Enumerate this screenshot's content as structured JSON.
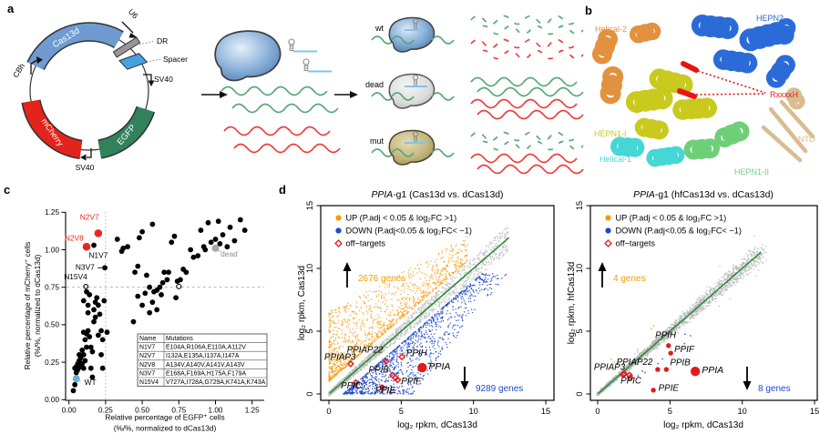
{
  "figure": {
    "panel_labels": {
      "a": "a",
      "b": "b",
      "c": "c",
      "d": "d"
    }
  },
  "panel_a": {
    "plasmid": {
      "cbh": "CBh",
      "cas13d": "Cas13d",
      "u6": "U6",
      "dr": "DR",
      "spacer": "Spacer",
      "sv40_right": "SV40",
      "sv40_bottom": "SV40",
      "mcherry": "mCherry",
      "egfp": "EGFP"
    },
    "variants": {
      "wt": "wt",
      "dead": "dead",
      "mut": "mut"
    },
    "colors": {
      "cas13d_arc": "#6f9bd0",
      "mcherry": "#e3231c",
      "egfp": "#31815d",
      "spacer": "#45a1df",
      "dr": "#969696",
      "target_rna": "#59a877",
      "nontarget_rna": "#ee3f3b",
      "guide": "#7fc4ed"
    }
  },
  "panel_b": {
    "labels": [
      {
        "text": "Helical-2",
        "color": "#e2913f"
      },
      {
        "text": "HEPN2",
        "color": "#2b6bd8"
      },
      {
        "text": "RxxxxH",
        "color": "#e81313"
      },
      {
        "text": "HEPN1-I",
        "color": "#c9c91e"
      },
      {
        "text": "Helical-1",
        "color": "#45d6d6"
      },
      {
        "text": "HEPN1-II",
        "color": "#6fcf79"
      },
      {
        "text": "NTD",
        "color": "#d8bd92"
      }
    ]
  },
  "chart_data": [
    {
      "type": "scatter",
      "panel": "c",
      "xlabel1": "Relative percentage of EGFP⁺ cells",
      "xlabel2": "(%/%, normalized to dCas13d)",
      "ylabel1": "Relative percentage of mCherry⁺ cells",
      "ylabel2": "(%/%, normalized to dCas13d)",
      "xlim": [
        0,
        1.3
      ],
      "ylim": [
        0,
        1.3
      ],
      "xticks": [
        0,
        0.25,
        0.5,
        0.75,
        1,
        1.25
      ],
      "xtick_labels": [
        "0.00",
        "0.25",
        "0.50",
        "0.75",
        "1.00",
        "1.25"
      ],
      "yticks": [
        0,
        0.25,
        0.5,
        0.75,
        1,
        1.25
      ],
      "ytick_labels": [
        "0.00",
        "0.25",
        "0.50",
        "0.75",
        "1.00",
        "1.25"
      ],
      "ref_lines": {
        "h": 0.75,
        "v": 0.25
      },
      "points": [
        [
          0.03,
          0.06
        ],
        [
          0.04,
          0.1
        ],
        [
          0.04,
          0.21
        ],
        [
          0.05,
          0.22
        ],
        [
          0.05,
          0.18
        ],
        [
          0.06,
          0.2
        ],
        [
          0.06,
          0.24
        ],
        [
          0.07,
          0.22
        ],
        [
          0.07,
          0.26
        ],
        [
          0.07,
          0.3
        ],
        [
          0.08,
          0.22
        ],
        [
          0.08,
          0.28
        ],
        [
          0.09,
          0.24
        ],
        [
          0.09,
          0.33
        ],
        [
          0.1,
          0.21
        ],
        [
          0.1,
          0.3
        ],
        [
          0.1,
          0.45
        ],
        [
          0.1,
          0.66
        ],
        [
          0.11,
          0.4
        ],
        [
          0.11,
          0.26
        ],
        [
          0.12,
          0.35
        ],
        [
          0.12,
          0.44
        ],
        [
          0.12,
          0.72
        ],
        [
          0.13,
          0.46
        ],
        [
          0.13,
          0.58
        ],
        [
          0.13,
          0.63
        ],
        [
          0.14,
          0.42
        ],
        [
          0.14,
          0.7
        ],
        [
          0.15,
          0.21
        ],
        [
          0.15,
          0.35
        ],
        [
          0.16,
          0.15
        ],
        [
          0.16,
          0.32
        ],
        [
          0.17,
          0.52
        ],
        [
          0.17,
          0.6
        ],
        [
          0.18,
          0.55
        ],
        [
          0.18,
          0.65
        ],
        [
          0.19,
          0.68
        ],
        [
          0.2,
          0.63
        ],
        [
          0.2,
          0.43
        ],
        [
          0.21,
          0.57
        ],
        [
          0.22,
          0.3
        ],
        [
          0.22,
          0.46
        ],
        [
          0.23,
          0.21
        ],
        [
          0.23,
          0.4
        ],
        [
          0.24,
          0.66
        ],
        [
          0.26,
          0.45
        ],
        [
          0.33,
          1.07
        ],
        [
          0.36,
          0.99
        ],
        [
          0.37,
          1.01
        ],
        [
          0.4,
          1.02
        ],
        [
          0.44,
          0.52
        ],
        [
          0.45,
          0.85
        ],
        [
          0.47,
          0.69
        ],
        [
          0.47,
          0.89
        ],
        [
          0.48,
          1.08
        ],
        [
          0.5,
          0.63
        ],
        [
          0.5,
          1.12
        ],
        [
          0.52,
          0.71
        ],
        [
          0.53,
          0.83
        ],
        [
          0.55,
          0.58
        ],
        [
          0.55,
          0.75
        ],
        [
          0.57,
          0.65
        ],
        [
          0.57,
          1.17
        ],
        [
          0.58,
          0.72
        ],
        [
          0.6,
          0.6
        ],
        [
          0.6,
          0.73
        ],
        [
          0.62,
          0.75
        ],
        [
          0.63,
          0.7
        ],
        [
          0.64,
          0.78
        ],
        [
          0.65,
          0.85
        ],
        [
          0.67,
          0.8
        ],
        [
          0.68,
          0.85
        ],
        [
          0.7,
          1.05
        ],
        [
          0.72,
          1.09
        ],
        [
          0.73,
          0.68
        ],
        [
          0.74,
          0.79
        ],
        [
          0.76,
          0.8
        ],
        [
          0.78,
          0.87
        ],
        [
          0.8,
          0.85
        ],
        [
          0.83,
          1.0
        ],
        [
          0.85,
          0.95
        ],
        [
          0.88,
          0.96
        ],
        [
          0.9,
          1.13
        ],
        [
          0.92,
          1.02
        ],
        [
          0.93,
          1.0
        ],
        [
          0.95,
          1.18
        ],
        [
          0.97,
          1.05
        ],
        [
          1.0,
          1.07
        ],
        [
          1.02,
          1.19
        ],
        [
          1.03,
          1.04
        ],
        [
          1.05,
          1.1
        ],
        [
          1.08,
          1.02
        ],
        [
          1.1,
          1.15
        ],
        [
          1.13,
          1.06
        ],
        [
          1.17,
          1.2
        ],
        [
          1.2,
          1.13
        ]
      ],
      "open_points": [
        [
          0.75,
          0.755
        ]
      ],
      "labeled_points": [
        {
          "label": "N2V7",
          "x": 0.2,
          "y": 1.11,
          "pc": "#e8251f",
          "lc": "#e8251f",
          "r": 4.3,
          "lx": 0.205,
          "ly": 1.2,
          "a": "end"
        },
        {
          "label": "N2V8",
          "x": 0.12,
          "y": 1.02,
          "pc": "#e8251f",
          "lc": "#e8251f",
          "r": 4.3,
          "lx": 0.1,
          "ly": 1.06,
          "a": "end"
        },
        {
          "label": "N1V7",
          "x": 0.17,
          "y": 1.03,
          "pc": "#000000",
          "lc": "#000000",
          "r": 2.9,
          "lx": 0.2,
          "ly": 0.945,
          "a": "middle"
        },
        {
          "label": "N3V7",
          "x": 0.245,
          "y": 0.88,
          "pc": "#000000",
          "lc": "#000000",
          "r": 2.9,
          "lx": 0.175,
          "ly": 0.868,
          "a": "end",
          "leader": "black"
        },
        {
          "label": "N15V4",
          "x": 0.115,
          "y": 0.755,
          "pc": "open",
          "lc": "#000000",
          "r": 2.3,
          "lx": 0.125,
          "ly": 0.803,
          "a": "end"
        },
        {
          "label": "WT",
          "x": 0.05,
          "y": 0.14,
          "pc": "#6baed6",
          "lc": "#000000",
          "r": 4.0,
          "lx": 0.105,
          "ly": 0.1,
          "a": "start",
          "leader": "dash"
        },
        {
          "label": "dead",
          "x": 1.0,
          "y": 1.01,
          "pc": "#a6a6a6",
          "lc": "#8c8c8c",
          "r": 4.0,
          "lx": 1.035,
          "ly": 0.955,
          "a": "start",
          "leader": "gray"
        }
      ],
      "inset_table": {
        "headers": [
          "Name",
          "Mutations"
        ],
        "rows": [
          [
            "N1V7",
            "E104A,R106A,E110A,A112V"
          ],
          [
            "N2V7",
            "I132A,E135A,I137A,I147A"
          ],
          [
            "N2V8",
            "A134V,A140V,A141V,A143V"
          ],
          [
            "N3V7",
            "E168A,F169A,H175A,F179A"
          ],
          [
            "N15V4",
            "V727A,I728A,G729A,K741A,K743A"
          ]
        ]
      }
    },
    {
      "type": "scatter",
      "panel": "d-left",
      "title_italic": "PPIA",
      "title_rest": "-g1 (Cas13d vs. dCas13d)",
      "xlabel": "log₂ rpkm, dCas13d",
      "ylabel": "log₂ rpkm, Cas13d",
      "xlim": [
        0,
        15
      ],
      "ylim": [
        0,
        15
      ],
      "ticks": [
        0,
        5,
        10,
        15
      ],
      "tick_labels": [
        "0",
        "5",
        "10",
        "15"
      ],
      "legend": [
        {
          "text": "UP (P.adj < 0.05 & log₂FC >1)",
          "color": "#f59b00",
          "marker": "dot"
        },
        {
          "text": "DOWN (P.adj<0.05 & log₂FC< −1)",
          "color": "#2149c9",
          "marker": "dot"
        },
        {
          "text": "off−targets",
          "color": "#e31a1c",
          "marker": "diamond"
        }
      ],
      "annotations": {
        "up": "2676 genes",
        "down": "9289 genes"
      },
      "colors": {
        "up": "#f7a11a",
        "down": "#2149c9",
        "gray": "#bdbdbd",
        "line": "#2e8b3c",
        "off": "#e31a1c"
      },
      "cloud": {
        "seed": 42,
        "mode": "fan",
        "gray": 1500,
        "up": 1200,
        "down": 1200,
        "max": 12.4
      },
      "diag_to": 12.45,
      "off_targets": [
        {
          "label": "PPIAP22",
          "x": 3.95,
          "y": 2.6,
          "m": "d",
          "lx": 3.75,
          "ly": 3.3,
          "a": "end"
        },
        {
          "label": "PPIH",
          "x": 5.05,
          "y": 2.95,
          "m": "d",
          "lx": 5.35,
          "ly": 3.05,
          "a": "start"
        },
        {
          "label": "PPIAP3",
          "x": 1.5,
          "y": 2.4,
          "m": "d",
          "lx": 1.85,
          "ly": 2.72,
          "a": "end"
        },
        {
          "label": "PPIB",
          "x": 4.4,
          "y": 1.5,
          "m": "d",
          "lx": 4.15,
          "ly": 1.72,
          "a": "end"
        },
        {
          "x": 4.6,
          "y": 1.28,
          "m": "d"
        },
        {
          "label": "PPIF",
          "x": 4.75,
          "y": 1.12,
          "m": "d",
          "lx": 5.0,
          "ly": 0.78,
          "a": "start"
        },
        {
          "label": "PPIE",
          "x": 3.7,
          "y": 0.55,
          "m": "dot",
          "lx": 3.9,
          "ly": 0.08,
          "a": "middle"
        },
        {
          "label": "PPIC",
          "x": 1.85,
          "y": 0.9,
          "m": "d",
          "lx": 1.55,
          "ly": 0.42,
          "a": "middle"
        },
        {
          "label": "PPIA",
          "x": 6.45,
          "y": 2.1,
          "m": "big",
          "lx": 6.9,
          "ly": 1.97,
          "a": "start"
        }
      ]
    },
    {
      "type": "scatter",
      "panel": "d-right",
      "title_italic": "PPIA",
      "title_rest": "-g1 (hfCas13d vs. dCas13d)",
      "xlabel": "log₂ rpkm, dCas13d",
      "ylabel": "log₂ rpkm, hfCas13d",
      "xlim": [
        0,
        15
      ],
      "ylim": [
        0,
        15
      ],
      "ticks": [
        0,
        5,
        10,
        15
      ],
      "tick_labels": [
        "0",
        "5",
        "10",
        "15"
      ],
      "legend": [
        {
          "text": "UP (P.adj < 0.05 & log₂FC >1)",
          "color": "#f59b00",
          "marker": "dot"
        },
        {
          "text": "DOWN (P.adj<0.05 & log₂FC< −1)",
          "color": "#2149c9",
          "marker": "dot"
        },
        {
          "text": "off−targets",
          "color": "#e31a1c",
          "marker": "diamond"
        }
      ],
      "annotations": {
        "up": "4 genes",
        "down": "8 genes"
      },
      "colors": {
        "up": "#f7a11a",
        "down": "#2149c9",
        "gray": "#b5b5b5",
        "line": "#2e8b3c",
        "off": "#e31a1c"
      },
      "cloud": {
        "seed": 11,
        "mode": "tight",
        "gray": 2100,
        "up": 4,
        "down": 8,
        "max": 11.3
      },
      "diag_to": 11.3,
      "off_targets": [
        {
          "label": "PPIH",
          "x": 4.9,
          "y": 3.85,
          "m": "dot",
          "lx": 4.7,
          "ly": 4.45,
          "a": "middle"
        },
        {
          "label": "PPIF",
          "x": 5.05,
          "y": 3.25,
          "m": "dot",
          "lx": 5.3,
          "ly": 3.32,
          "a": "start"
        },
        {
          "label": "PPIAP22",
          "x": 1.85,
          "y": 1.6,
          "m": "d",
          "lx": 2.55,
          "ly": 2.33,
          "a": "middle"
        },
        {
          "x": 2.2,
          "y": 1.5,
          "m": "d"
        },
        {
          "label": "PPIAP3",
          "x": 1.75,
          "y": 1.55,
          "m": "d",
          "lx": 1.9,
          "ly": 1.93,
          "a": "end"
        },
        {
          "label": "PPIB",
          "x": 4.15,
          "y": 1.95,
          "m": "dot",
          "lx": 5.0,
          "ly": 2.28,
          "a": "start"
        },
        {
          "x": 4.75,
          "y": 1.95,
          "m": "dot"
        },
        {
          "label": "PPIC",
          "x": 2.25,
          "y": 1.3,
          "m": "d",
          "lx": 2.3,
          "ly": 0.82,
          "a": "middle"
        },
        {
          "label": "PPIE",
          "x": 3.85,
          "y": 0.3,
          "m": "dot",
          "lx": 4.2,
          "ly": 0.25,
          "a": "start"
        },
        {
          "label": "PPIA",
          "x": 6.75,
          "y": 1.8,
          "m": "big",
          "lx": 7.2,
          "ly": 1.68,
          "a": "start"
        }
      ]
    }
  ]
}
